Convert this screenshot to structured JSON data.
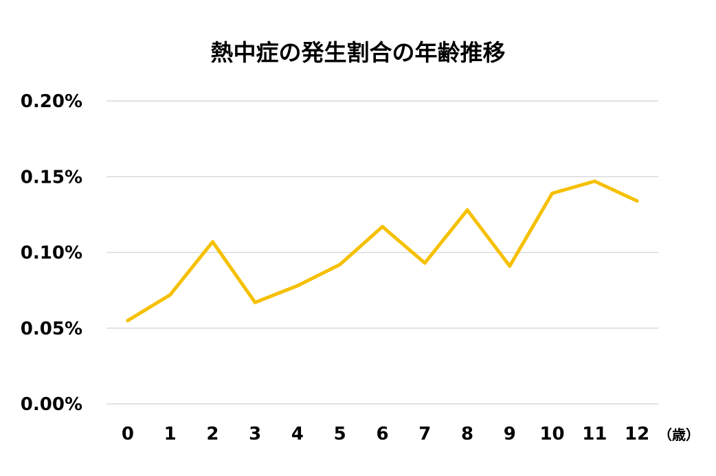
{
  "chart_data": {
    "type": "line",
    "title": "熱中症の発生割合の年齢推移",
    "categories": [
      "0",
      "1",
      "2",
      "3",
      "4",
      "5",
      "6",
      "7",
      "8",
      "9",
      "10",
      "11",
      "12"
    ],
    "x_unit": "（歳）",
    "series": [
      {
        "values": [
          0.055,
          0.072,
          0.107,
          0.067,
          0.078,
          0.092,
          0.117,
          0.093,
          0.128,
          0.091,
          0.139,
          0.147,
          0.134
        ],
        "color": "#f5c000"
      }
    ],
    "y_ticks": [
      "0.00%",
      "0.05%",
      "0.10%",
      "0.15%",
      "0.20%"
    ],
    "y_tick_values": [
      0,
      0.05,
      0.1,
      0.15,
      0.2
    ],
    "ylim": [
      0,
      0.2
    ],
    "y_unit": "%",
    "grid": true,
    "legend": "none"
  }
}
